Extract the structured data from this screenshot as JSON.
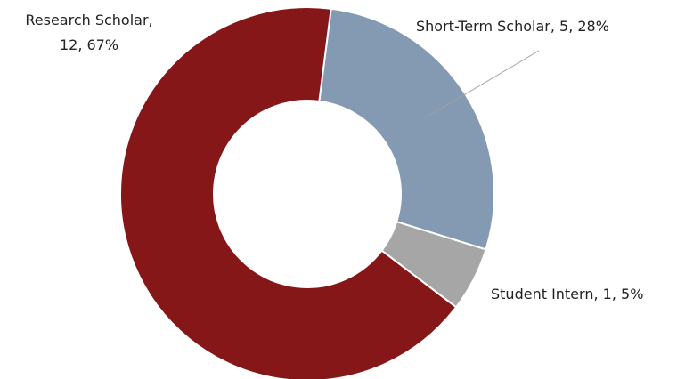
{
  "chart_data": {
    "type": "donut",
    "categories": [
      "Short-Term Scholar",
      "Student Intern",
      "Research Scholar"
    ],
    "values": [
      5,
      1,
      12
    ],
    "percent_labels": [
      "28%",
      "5%",
      "67%"
    ],
    "colors": [
      "#8499b2",
      "#a6a6a6",
      "#861719"
    ]
  }
}
